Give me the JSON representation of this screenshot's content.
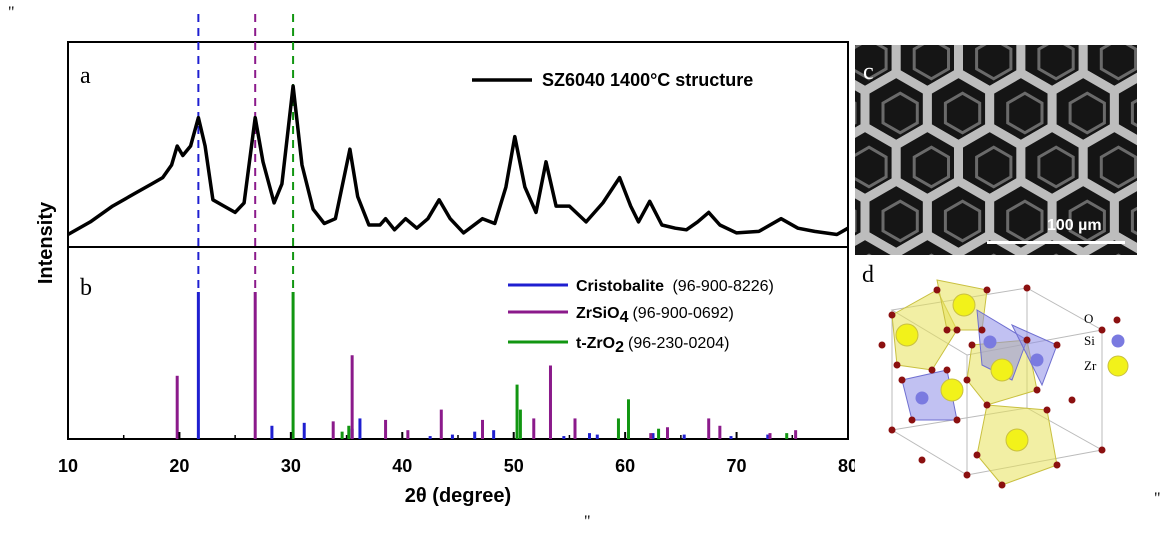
{
  "decor": {
    "quote_mark": "\""
  },
  "panels": {
    "a": "a",
    "b": "b",
    "c": "c",
    "d": "d"
  },
  "chart_data": {
    "type": "line",
    "xlabel": "2θ (degree)",
    "ylabel": "Intensity",
    "xlim": [
      10,
      80
    ],
    "xticks": [
      "10",
      "20",
      "30",
      "40",
      "50",
      "60",
      "70",
      "80"
    ],
    "reference_lines": [
      {
        "x": 21.7,
        "color": "#1f1fd0"
      },
      {
        "x": 26.8,
        "color": "#8b1a8b"
      },
      {
        "x": 30.2,
        "color": "#119611"
      }
    ],
    "measured": {
      "legend": "SZ6040 1400°C structure",
      "color": "#000000",
      "points": [
        [
          10,
          0.06
        ],
        [
          12,
          0.14
        ],
        [
          14,
          0.24
        ],
        [
          16,
          0.32
        ],
        [
          17.5,
          0.38
        ],
        [
          18.5,
          0.42
        ],
        [
          19.3,
          0.5
        ],
        [
          19.8,
          0.62
        ],
        [
          20.3,
          0.56
        ],
        [
          21.0,
          0.62
        ],
        [
          21.7,
          0.8
        ],
        [
          22.3,
          0.62
        ],
        [
          23,
          0.28
        ],
        [
          24,
          0.24
        ],
        [
          25,
          0.2
        ],
        [
          25.8,
          0.26
        ],
        [
          26.8,
          0.8
        ],
        [
          27.5,
          0.52
        ],
        [
          28.5,
          0.26
        ],
        [
          29.2,
          0.38
        ],
        [
          30.2,
          1.0
        ],
        [
          31,
          0.5
        ],
        [
          32,
          0.22
        ],
        [
          33,
          0.13
        ],
        [
          34,
          0.16
        ],
        [
          35.3,
          0.6
        ],
        [
          36,
          0.3
        ],
        [
          37,
          0.12
        ],
        [
          38,
          0.12
        ],
        [
          38.5,
          0.16
        ],
        [
          39.3,
          0.09
        ],
        [
          40.3,
          0.16
        ],
        [
          41.3,
          0.1
        ],
        [
          42.3,
          0.16
        ],
        [
          43.3,
          0.28
        ],
        [
          44.3,
          0.16
        ],
        [
          45.5,
          0.07
        ],
        [
          47.2,
          0.16
        ],
        [
          48.3,
          0.13
        ],
        [
          49.3,
          0.36
        ],
        [
          50.1,
          0.68
        ],
        [
          51,
          0.36
        ],
        [
          52,
          0.2
        ],
        [
          52.9,
          0.52
        ],
        [
          53.8,
          0.24
        ],
        [
          55,
          0.24
        ],
        [
          56.5,
          0.14
        ],
        [
          58,
          0.26
        ],
        [
          59.5,
          0.42
        ],
        [
          60.5,
          0.24
        ],
        [
          61.2,
          0.14
        ],
        [
          62.2,
          0.27
        ],
        [
          63.3,
          0.12
        ],
        [
          64.5,
          0.1
        ],
        [
          65.5,
          0.09
        ],
        [
          66.5,
          0.14
        ],
        [
          67.5,
          0.2
        ],
        [
          68.5,
          0.12
        ],
        [
          70,
          0.07
        ],
        [
          72,
          0.08
        ],
        [
          74,
          0.16
        ],
        [
          75.5,
          0.1
        ],
        [
          77,
          0.08
        ],
        [
          79,
          0.06
        ],
        [
          80,
          0.1
        ]
      ]
    },
    "reference_series": [
      {
        "name": "Cristobalite",
        "code": "(96-900-8226)",
        "color": "#1f1fd0",
        "peaks": [
          [
            21.7,
            1.0
          ],
          [
            28.3,
            0.09
          ],
          [
            31.2,
            0.11
          ],
          [
            35.5,
            0.07
          ],
          [
            36.2,
            0.14
          ],
          [
            42.5,
            0.02
          ],
          [
            44.5,
            0.03
          ],
          [
            46.5,
            0.05
          ],
          [
            48.2,
            0.06
          ],
          [
            54.5,
            0.02
          ],
          [
            56.8,
            0.04
          ],
          [
            57.5,
            0.03
          ],
          [
            62.5,
            0.04
          ],
          [
            65.3,
            0.03
          ],
          [
            69.5,
            0.02
          ],
          [
            72.8,
            0.03
          ]
        ]
      },
      {
        "name": "ZrSiO4",
        "name_main": "ZrSiO",
        "name_sub": "4",
        "code": "(96-900-0692)",
        "color": "#8b1a8b",
        "peaks": [
          [
            19.8,
            0.43
          ],
          [
            26.8,
            1.0
          ],
          [
            33.8,
            0.12
          ],
          [
            35.5,
            0.57
          ],
          [
            38.5,
            0.13
          ],
          [
            40.5,
            0.06
          ],
          [
            43.5,
            0.2
          ],
          [
            47.2,
            0.13
          ],
          [
            51.8,
            0.14
          ],
          [
            53.3,
            0.5
          ],
          [
            55.5,
            0.14
          ],
          [
            62.3,
            0.04
          ],
          [
            63.8,
            0.08
          ],
          [
            67.5,
            0.14
          ],
          [
            68.5,
            0.09
          ],
          [
            73.0,
            0.04
          ],
          [
            75.3,
            0.06
          ]
        ]
      },
      {
        "name": "t-ZrO2",
        "name_main": "t-ZrO",
        "name_sub": "2",
        "code": "(96-230-0204)",
        "color": "#119611",
        "peaks": [
          [
            30.2,
            1.0
          ],
          [
            34.6,
            0.05
          ],
          [
            35.2,
            0.09
          ],
          [
            50.3,
            0.37
          ],
          [
            50.6,
            0.2
          ],
          [
            59.4,
            0.14
          ],
          [
            60.3,
            0.27
          ],
          [
            63.0,
            0.07
          ],
          [
            74.5,
            0.04
          ]
        ]
      }
    ]
  },
  "image_c": {
    "scale_label": "100 µm"
  },
  "crystal_d": {
    "labels": [
      "O",
      "Si",
      "Zr"
    ],
    "colors": {
      "O": "#8b1010",
      "Si": "#7a7ae0",
      "Zr": "#f2f21a"
    }
  }
}
